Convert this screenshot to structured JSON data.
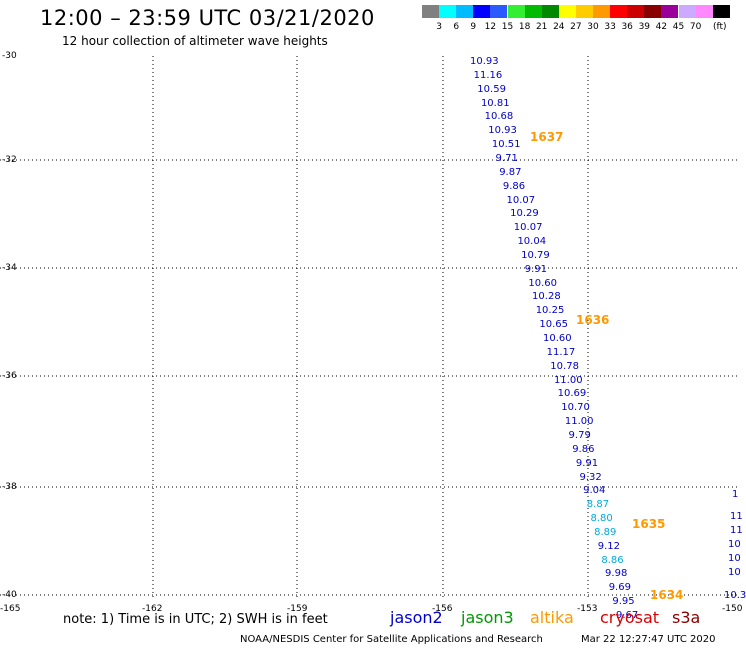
{
  "header": {
    "title": "12:00 – 23:59 UTC 03/21/2020",
    "subtitle": "12 hour collection of altimeter wave heights"
  },
  "legend": {
    "colors": [
      "#808080",
      "#00ffff",
      "#00bbff",
      "#0000ff",
      "#2a5aff",
      "#33ee33",
      "#00bb00",
      "#008800",
      "#ffff00",
      "#ffcc00",
      "#ff9900",
      "#ff0000",
      "#cc0000",
      "#880000",
      "#990099",
      "#ccaaff",
      "#ff88ff",
      "#000000"
    ],
    "ticks": [
      "3",
      "6",
      "9",
      "12",
      "15",
      "18",
      "21",
      "24",
      "27",
      "30",
      "33",
      "36",
      "39",
      "42",
      "45",
      "70"
    ],
    "unit": "(ft)"
  },
  "axes": {
    "lat_labels": [
      "-30",
      "-32",
      "-34",
      "-36",
      "-38",
      "-40"
    ],
    "lon_labels": [
      "-165",
      "-162",
      "-159",
      "-156",
      "-153",
      "-150"
    ]
  },
  "track_jason2": [
    {
      "v": "10.93",
      "c": "#0000cc"
    },
    {
      "v": "11.16",
      "c": "#0000cc"
    },
    {
      "v": "10.59",
      "c": "#0000cc"
    },
    {
      "v": "10.81",
      "c": "#0000cc"
    },
    {
      "v": "10.68",
      "c": "#0000cc"
    },
    {
      "v": "10.93",
      "c": "#0000cc"
    },
    {
      "v": "10.51",
      "c": "#0000cc"
    },
    {
      "v": "9.71",
      "c": "#0000cc"
    },
    {
      "v": "9.87",
      "c": "#0000cc"
    },
    {
      "v": "9.86",
      "c": "#0000cc"
    },
    {
      "v": "10.07",
      "c": "#0000cc"
    },
    {
      "v": "10.29",
      "c": "#0000cc"
    },
    {
      "v": "10.07",
      "c": "#0000cc"
    },
    {
      "v": "10.04",
      "c": "#0000cc"
    },
    {
      "v": "10.79",
      "c": "#0000cc"
    },
    {
      "v": "9.91",
      "c": "#0000cc"
    },
    {
      "v": "10.60",
      "c": "#0000cc"
    },
    {
      "v": "10.28",
      "c": "#0000cc"
    },
    {
      "v": "10.25",
      "c": "#0000cc"
    },
    {
      "v": "10.65",
      "c": "#0000cc"
    },
    {
      "v": "10.60",
      "c": "#0000cc"
    },
    {
      "v": "11.17",
      "c": "#0000cc"
    },
    {
      "v": "10.78",
      "c": "#0000cc"
    },
    {
      "v": "11.00",
      "c": "#0000cc"
    },
    {
      "v": "10.69",
      "c": "#0000cc"
    },
    {
      "v": "10.70",
      "c": "#0000cc"
    },
    {
      "v": "11.00",
      "c": "#0000cc"
    },
    {
      "v": "9.79",
      "c": "#0000cc"
    },
    {
      "v": "9.86",
      "c": "#0000cc"
    },
    {
      "v": "9.91",
      "c": "#0000cc"
    },
    {
      "v": "9.32",
      "c": "#0000cc"
    },
    {
      "v": "9.04",
      "c": "#0000cc"
    },
    {
      "v": "8.87",
      "c": "#00aadd"
    },
    {
      "v": "8.80",
      "c": "#00aadd"
    },
    {
      "v": "8.89",
      "c": "#00aadd"
    },
    {
      "v": "9.12",
      "c": "#0000cc"
    },
    {
      "v": "8.86",
      "c": "#00aadd"
    },
    {
      "v": "9.98",
      "c": "#0000cc"
    },
    {
      "v": "9.69",
      "c": "#0000cc"
    },
    {
      "v": "9.95",
      "c": "#0000cc"
    },
    {
      "v": "9.67",
      "c": "#0000cc"
    }
  ],
  "time_markers": [
    "1637",
    "1636",
    "1635",
    "1634"
  ],
  "edge_track": [
    "1",
    "11",
    "11",
    "10",
    "10",
    "10",
    "10.3"
  ],
  "note": "note:  1) Time is in UTC;  2) SWH is in feet",
  "satellites": [
    {
      "name": "jason2",
      "color": "#0000cc"
    },
    {
      "name": "jason3",
      "color": "#009900"
    },
    {
      "name": "altika",
      "color": "#ff9900"
    },
    {
      "name": "cryosat",
      "color": "#dd0000"
    },
    {
      "name": "s3a",
      "color": "#880000"
    }
  ],
  "footer": {
    "left": "NOAA/NESDIS Center for Satellite Applications and Research",
    "right": "Mar 22 12:27:47 UTC 2020"
  }
}
